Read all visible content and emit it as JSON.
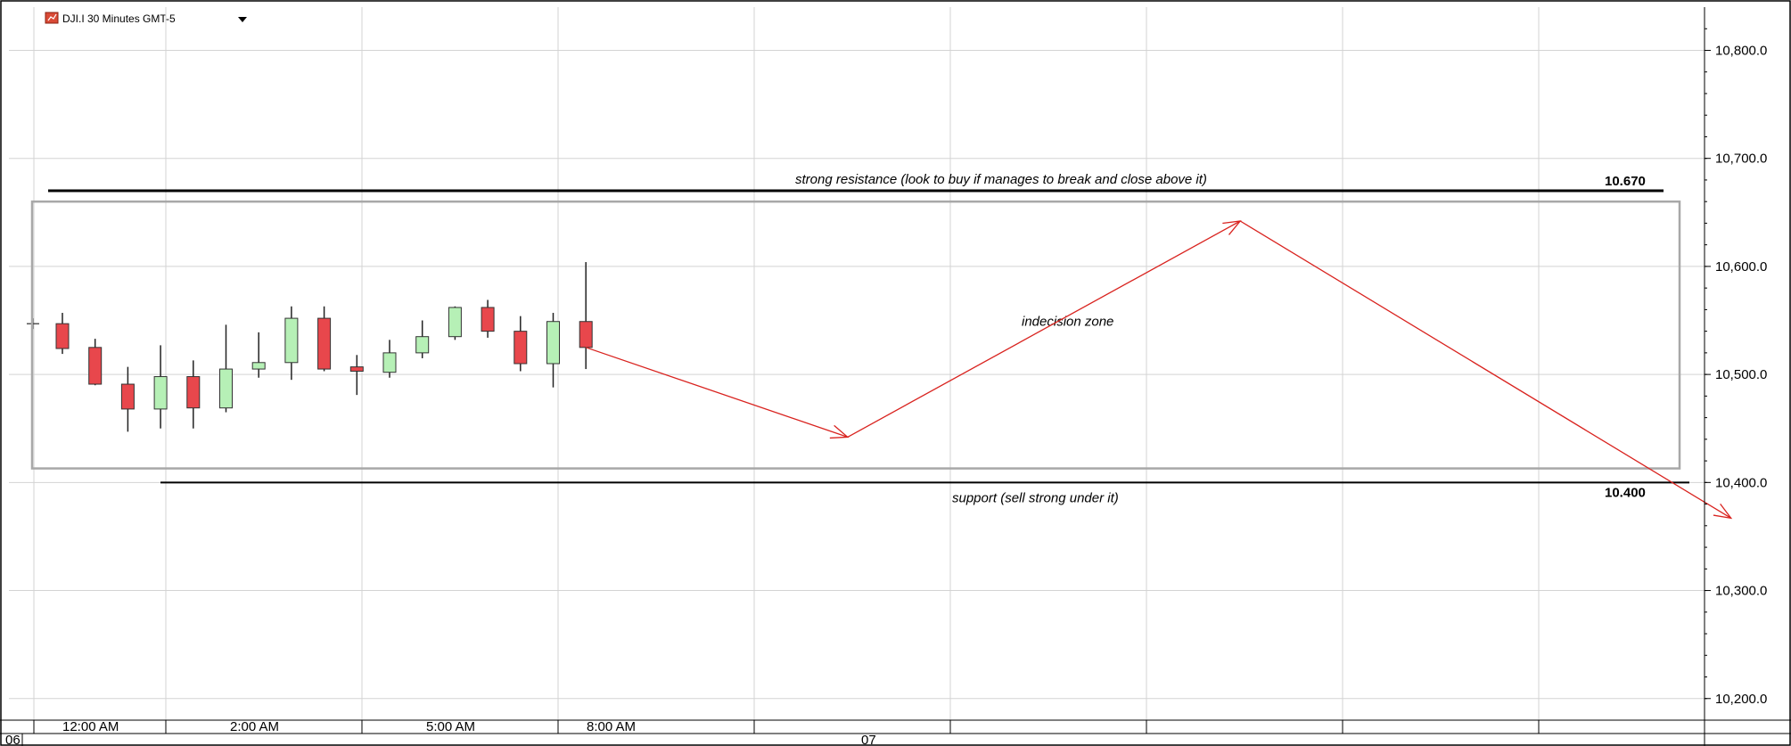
{
  "chart_data": {
    "type": "candlestick",
    "title": "DJI.I 30 Minutes GMT-5",
    "ylim": [
      10180,
      10840
    ],
    "y_ticks": [
      10200,
      10300,
      10400,
      10500,
      10600,
      10700,
      10800
    ],
    "y_tick_labels": [
      "10,200.0",
      "10,300.0",
      "10,400.0",
      "10,500.0",
      "10,600.0",
      "10,700.0",
      "10,800.0"
    ],
    "grid": true,
    "time_labels": [
      "12:00 AM",
      "2:00 AM",
      "5:00 AM",
      "8:00 AM"
    ],
    "date_labels": [
      "06",
      "07"
    ],
    "candles": [
      {
        "open": 10547,
        "high": 10557,
        "low": 10519,
        "close": 10524
      },
      {
        "open": 10525,
        "high": 10533,
        "low": 10490,
        "close": 10491
      },
      {
        "open": 10491,
        "high": 10507,
        "low": 10447,
        "close": 10468
      },
      {
        "open": 10468,
        "high": 10527,
        "low": 10450,
        "close": 10498
      },
      {
        "open": 10498,
        "high": 10513,
        "low": 10450,
        "close": 10469
      },
      {
        "open": 10469,
        "high": 10546,
        "low": 10465,
        "close": 10505
      },
      {
        "open": 10505,
        "high": 10539,
        "low": 10497,
        "close": 10511
      },
      {
        "open": 10511,
        "high": 10563,
        "low": 10495,
        "close": 10552
      },
      {
        "open": 10552,
        "high": 10563,
        "low": 10503,
        "close": 10505
      },
      {
        "open": 10507,
        "high": 10518,
        "low": 10481,
        "close": 10503
      },
      {
        "open": 10502,
        "high": 10532,
        "low": 10497,
        "close": 10520
      },
      {
        "open": 10520,
        "high": 10550,
        "low": 10515,
        "close": 10535
      },
      {
        "open": 10535,
        "high": 10563,
        "low": 10532,
        "close": 10562
      },
      {
        "open": 10562,
        "high": 10569,
        "low": 10534,
        "close": 10540
      },
      {
        "open": 10540,
        "high": 10554,
        "low": 10503,
        "close": 10510
      },
      {
        "open": 10510,
        "high": 10557,
        "low": 10488,
        "close": 10549
      },
      {
        "open": 10549,
        "high": 10604,
        "low": 10505,
        "close": 10525
      }
    ],
    "levels": [
      {
        "value": 10670,
        "label": "10.670",
        "note": "strong resistance (look to buy if manages to break and close above it)"
      },
      {
        "value": 10400,
        "label": "10.400",
        "note": "support (sell strong under it)"
      }
    ],
    "zone": {
      "label": "indecision zone",
      "top": 10660,
      "bottom": 10413
    },
    "arrow_path": [
      [
        16,
        10525
      ],
      [
        24,
        10442
      ],
      [
        36,
        10642
      ],
      [
        51,
        10367
      ]
    ],
    "colors": {
      "up": "#b6f0b6",
      "down": "#e8474c",
      "arrow": "#d9231f",
      "grid": "#d3d3d3",
      "zone": "#a8a8a8"
    }
  }
}
